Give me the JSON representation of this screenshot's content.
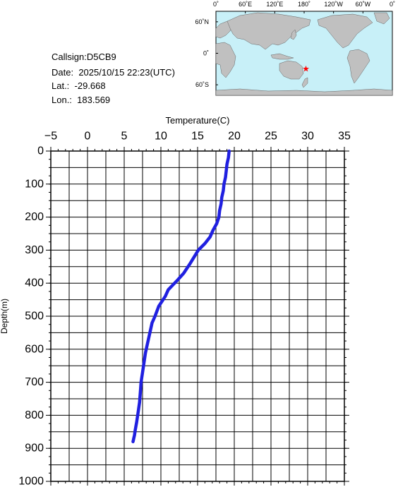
{
  "station": {
    "callsign_label": "Callsign:",
    "callsign": "D5CB9",
    "date_label": "Date:",
    "date": "2025/10/15 22:23(UTC)",
    "lat_label": "Lat.:",
    "lat": "-29.668",
    "lon_label": "Lon.:",
    "lon": "183.569"
  },
  "map": {
    "top_labels": [
      "0˚",
      "60˚E",
      "120˚E",
      "180˚",
      "120˚W",
      "60˚W",
      "0˚"
    ],
    "left_labels": [
      "60˚N",
      "0˚",
      "60˚S"
    ],
    "ocean_color": "#c8f0f8",
    "land_color": "#c0c0c0",
    "marker_color": "#ff0000",
    "marker_lon": 183.569,
    "marker_lat": -29.668
  },
  "chart_data": {
    "type": "line",
    "xlabel": "Temperature(C)",
    "ylabel": "Depth(m)",
    "xlim": [
      -5,
      35
    ],
    "ylim": [
      1000,
      0
    ],
    "x_ticks": [
      "-5",
      "0",
      "5",
      "10",
      "15",
      "20",
      "25",
      "30",
      "35"
    ],
    "y_ticks": [
      "0",
      "100",
      "200",
      "300",
      "400",
      "500",
      "600",
      "700",
      "800",
      "900",
      "1000"
    ],
    "grid": true,
    "line_color": "#2020e0",
    "series": [
      {
        "x": [
          19.3,
          19.2,
          19.0,
          18.9,
          18.8,
          18.6,
          18.5,
          18.3,
          18.2,
          18.0,
          17.9,
          17.6,
          17.1,
          16.7,
          16.0,
          15.1,
          14.0,
          13.1,
          12.3,
          11.0,
          10.6,
          9.7,
          9.2,
          8.8,
          8.5,
          8.2,
          7.9,
          7.7,
          7.5,
          7.3,
          7.2,
          7.1,
          6.9,
          6.7,
          6.5,
          6.4,
          6.3,
          6.2
        ],
        "y": [
          0,
          20,
          40,
          60,
          80,
          100,
          120,
          140,
          160,
          180,
          200,
          220,
          240,
          260,
          280,
          300,
          340,
          370,
          390,
          420,
          440,
          470,
          500,
          520,
          550,
          580,
          610,
          640,
          670,
          700,
          730,
          760,
          790,
          820,
          845,
          860,
          870,
          880
        ]
      }
    ]
  }
}
